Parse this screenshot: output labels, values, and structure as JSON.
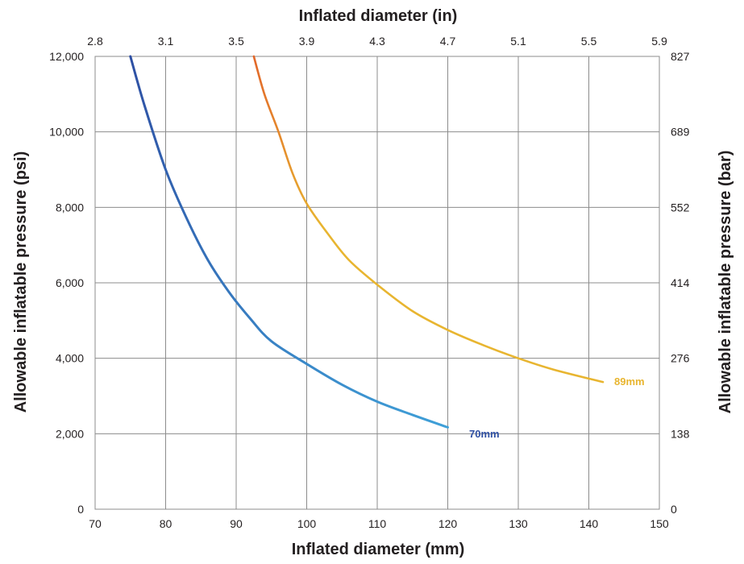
{
  "colors": {
    "grid": "#8c8c8c",
    "series_70_start": "#2e4fa3",
    "series_70_end": "#3fa0d8",
    "series_89_start": "#e2672a",
    "series_89_end": "#e8b530"
  },
  "chart_data": {
    "type": "line",
    "title": "",
    "xlabel_bottom": "Inflated diameter (mm)",
    "xlabel_top": "Inflated diameter (in)",
    "ylabel_left": "Allowable inflatable pressure (psi)",
    "ylabel_right": "Allowable inflatable pressure (bar)",
    "xlim": [
      70,
      150
    ],
    "ylim": [
      0,
      12000
    ],
    "grid": true,
    "legend": "none",
    "x_ticks_bottom": [
      "70",
      "80",
      "90",
      "100",
      "110",
      "120",
      "130",
      "140",
      "150"
    ],
    "x_ticks_top": [
      "2.8",
      "3.1",
      "3.5",
      "3.9",
      "4.3",
      "4.7",
      "5.1",
      "5.5",
      "5.9"
    ],
    "y_ticks_left": [
      "0",
      "2,000",
      "4,000",
      "6,000",
      "8,000",
      "10,000",
      "12,000"
    ],
    "y_ticks_right": [
      "0",
      "138",
      "276",
      "414",
      "552",
      "689",
      "827"
    ],
    "series": [
      {
        "name": "70mm",
        "x": [
          75,
          77,
          80,
          83,
          86,
          89,
          92,
          95,
          100,
          105,
          110,
          115,
          120
        ],
        "y": [
          12000,
          10700,
          9000,
          7700,
          6600,
          5750,
          5050,
          4450,
          3850,
          3300,
          2850,
          2500,
          2170
        ]
      },
      {
        "name": "89mm",
        "x": [
          92.5,
          94,
          96,
          98,
          100,
          103,
          106,
          110,
          115,
          120,
          125,
          130,
          135,
          142
        ],
        "y": [
          12000,
          11000,
          10000,
          8900,
          8100,
          7300,
          6600,
          5950,
          5250,
          4750,
          4350,
          4000,
          3700,
          3370
        ]
      }
    ]
  }
}
